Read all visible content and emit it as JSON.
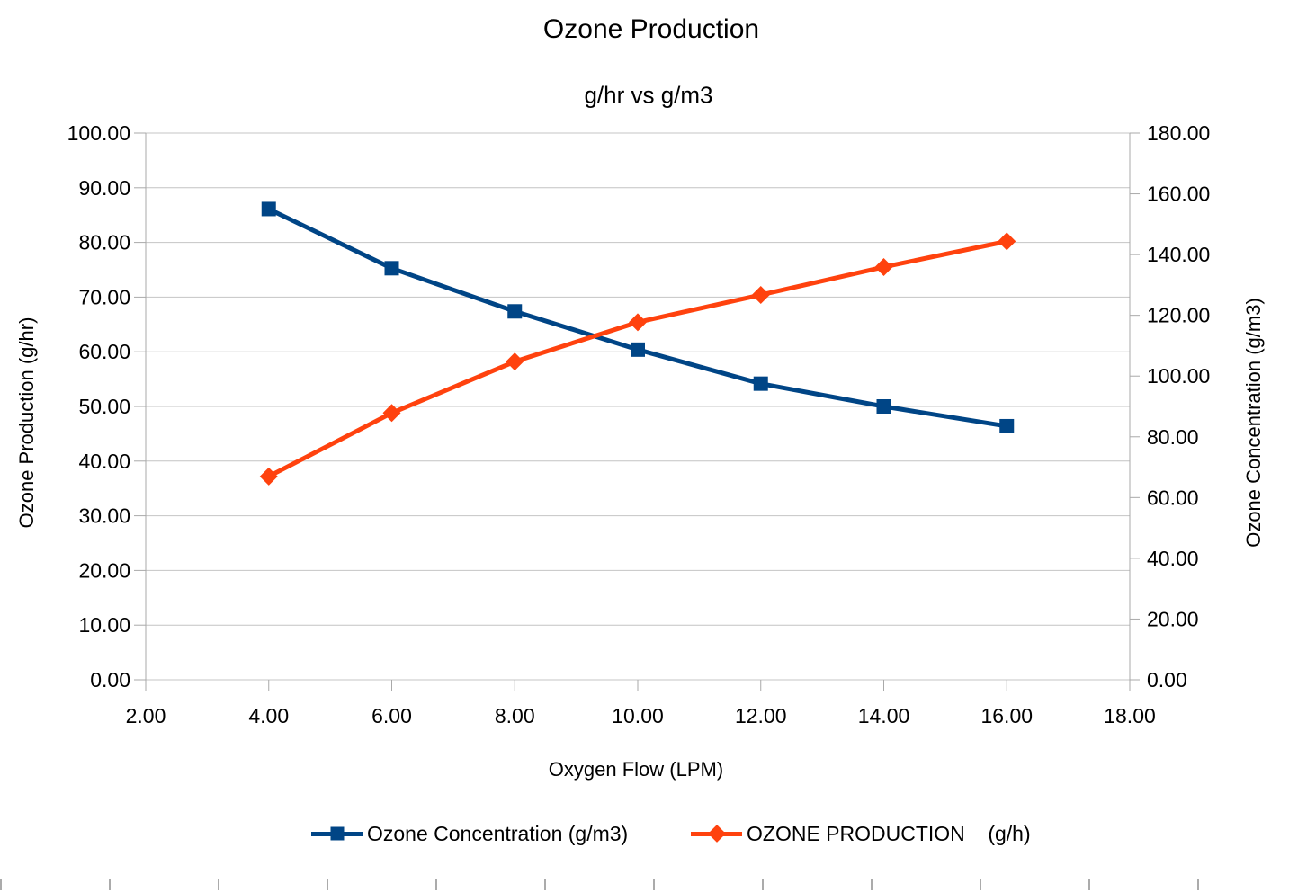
{
  "chart_data": {
    "type": "line",
    "title": "Ozone Production",
    "subtitle": "g/hr vs g/m3",
    "grid": "horizontal",
    "legend_position": "bottom",
    "x_axis": {
      "title": "Oxygen Flow (LPM)",
      "min": 2,
      "max": 18,
      "step": 2,
      "tick_labels": [
        "2.00",
        "4.00",
        "6.00",
        "8.00",
        "10.00",
        "12.00",
        "14.00",
        "16.00",
        "18.00"
      ]
    },
    "left_axis": {
      "title": "Ozone Production (g/hr)",
      "min": 0,
      "max": 100,
      "step": 10,
      "tick_labels": [
        "0.00",
        "10.00",
        "20.00",
        "30.00",
        "40.00",
        "50.00",
        "60.00",
        "70.00",
        "80.00",
        "90.00",
        "100.00"
      ]
    },
    "right_axis": {
      "title": "Ozone Concentration (g/m3)",
      "min": 0,
      "max": 180,
      "step": 20,
      "tick_labels": [
        "0.00",
        "20.00",
        "40.00",
        "60.00",
        "80.00",
        "100.00",
        "120.00",
        "140.00",
        "160.00",
        "180.00"
      ]
    },
    "x": [
      4,
      6,
      8,
      10,
      12,
      14,
      16
    ],
    "series": [
      {
        "name": "Ozone Concentration (g/m3)",
        "axis": "right",
        "marker": "square",
        "color": "#004586",
        "values": [
          155.0,
          135.5,
          121.3,
          108.7,
          97.5,
          90.0,
          83.5
        ]
      },
      {
        "name": "OZONE PRODUCTION    (g/h)",
        "axis": "left",
        "marker": "diamond",
        "color": "#FF420E",
        "values": [
          37.2,
          48.8,
          58.2,
          65.4,
          70.4,
          75.5,
          80.2
        ]
      }
    ]
  },
  "colors": {
    "gridline": "#c4c4c4",
    "axis_line": "#a9a9a9",
    "text": "#000000"
  }
}
